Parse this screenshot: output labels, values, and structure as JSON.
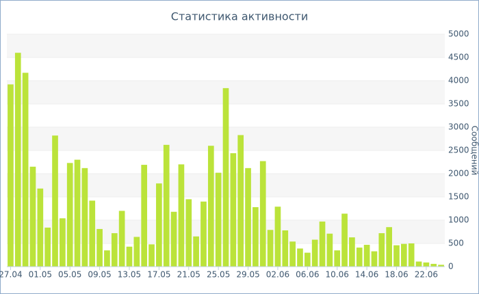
{
  "chart_data": {
    "type": "bar",
    "title": "Статистика активности",
    "y_axis_label": "Сообщений",
    "categories": [
      "27.04",
      null,
      null,
      null,
      "01.05",
      null,
      null,
      null,
      "05.05",
      null,
      null,
      null,
      "09.05",
      null,
      null,
      null,
      "13.05",
      null,
      null,
      null,
      "17.05",
      null,
      null,
      null,
      "21.05",
      null,
      null,
      null,
      "25.05",
      null,
      null,
      null,
      "29.05",
      null,
      null,
      null,
      "02.06",
      null,
      null,
      null,
      "06.06",
      null,
      null,
      null,
      "10.06",
      null,
      null,
      null,
      "14.06",
      null,
      null,
      null,
      "18.06",
      null,
      null,
      null,
      "22.06",
      null,
      null
    ],
    "values": [
      3920,
      4600,
      4170,
      2150,
      1680,
      840,
      2820,
      1040,
      2230,
      2300,
      2120,
      1420,
      810,
      350,
      720,
      1200,
      430,
      640,
      2190,
      480,
      1790,
      2620,
      1180,
      2200,
      1450,
      650,
      1400,
      2600,
      2020,
      3840,
      2440,
      2830,
      2120,
      1280,
      2270,
      790,
      1290,
      780,
      540,
      390,
      300,
      580,
      970,
      710,
      350,
      1140,
      630,
      410,
      470,
      330,
      720,
      850,
      460,
      490,
      500,
      110,
      90,
      60,
      40
    ],
    "color": "#bbe33a",
    "ylim": [
      0,
      5000
    ],
    "yticks": [
      0,
      500,
      1000,
      1500,
      2000,
      2500,
      3000,
      3500,
      4000,
      4500,
      5000
    ],
    "grid": true
  }
}
